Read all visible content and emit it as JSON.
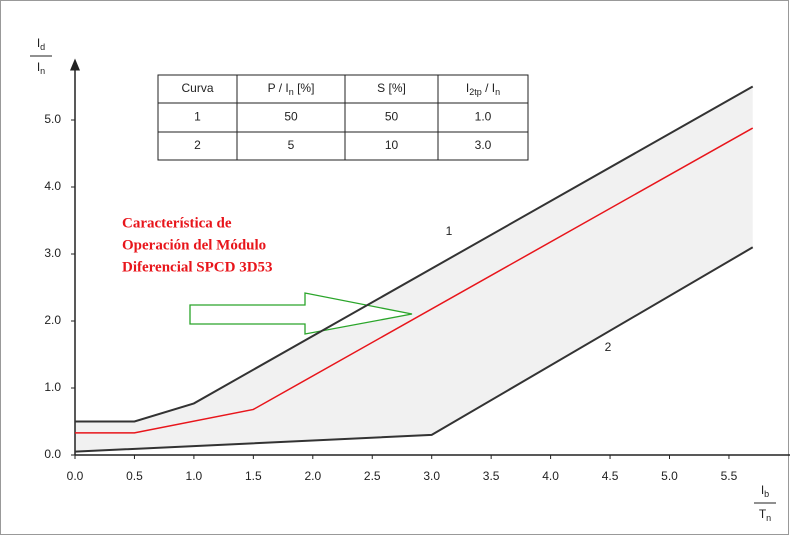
{
  "chart_data": {
    "type": "line",
    "x_label": [
      "I",
      "b",
      "T",
      "n"
    ],
    "y_label": [
      "I",
      "d",
      "I",
      "n"
    ],
    "xlim": [
      0,
      5.9
    ],
    "ylim": [
      0,
      5.5
    ],
    "xticks": [
      {
        "value": 0,
        "label": "0.0"
      },
      {
        "value": 0.5,
        "label": "0.5"
      },
      {
        "value": 1,
        "label": "1.0"
      },
      {
        "value": 1.5,
        "label": "1.5"
      },
      {
        "value": 2,
        "label": "2.0"
      },
      {
        "value": 2.5,
        "label": "2.5"
      },
      {
        "value": 3,
        "label": "3.0"
      },
      {
        "value": 3.5,
        "label": "3.5"
      },
      {
        "value": 4,
        "label": "4.0"
      },
      {
        "value": 4.5,
        "label": "4.5"
      },
      {
        "value": 5,
        "label": "5.0"
      },
      {
        "value": 5.5,
        "label": "5.5"
      }
    ],
    "yticks": [
      {
        "value": 0,
        "label": "0.0"
      },
      {
        "value": 1,
        "label": "1.0"
      },
      {
        "value": 2,
        "label": "2.0"
      },
      {
        "value": 3,
        "label": "3.0"
      },
      {
        "value": 4,
        "label": "4.0"
      },
      {
        "value": 5,
        "label": "5.0"
      }
    ],
    "fill_between": "#f1f1f1",
    "series": [
      {
        "name": "1",
        "color": "#333333",
        "x": [
          0,
          0.5,
          1.0,
          5.7
        ],
        "values": [
          0.5,
          0.5,
          0.77,
          5.5
        ]
      },
      {
        "name": "2",
        "color": "#333333",
        "x": [
          0,
          3.0,
          5.7
        ],
        "values": [
          0.05,
          0.3,
          3.1
        ]
      },
      {
        "color": "#e8151b",
        "x": [
          0,
          0.5,
          1.5,
          5.7
        ],
        "values": [
          0.33,
          0.33,
          0.68,
          4.88
        ]
      }
    ],
    "annotation": [
      "Característica de",
      "Operación del Módulo",
      "Diferencial SPCD 3D53"
    ],
    "table": {
      "header": [
        [
          "Curva"
        ],
        [
          "P / I",
          "n",
          "  [%]"
        ],
        [
          "S  [%]"
        ],
        [
          "I",
          "2tp",
          "  / I",
          "n"
        ]
      ],
      "rows": [
        [
          "1",
          "50",
          "50",
          "1.0"
        ],
        [
          "2",
          "5",
          "10",
          "3.0"
        ]
      ]
    }
  }
}
